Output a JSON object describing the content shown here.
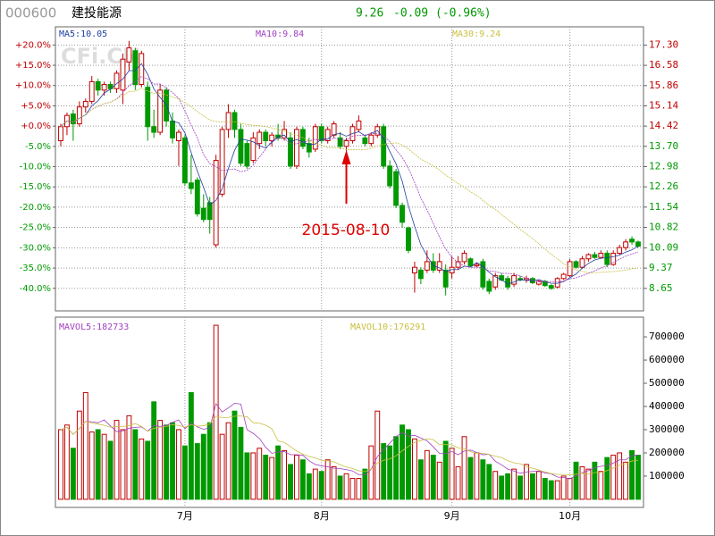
{
  "header": {
    "code": "000600",
    "name": "建投能源",
    "price": "9.26",
    "change": "-0.09",
    "change_pct": "(-0.96%)"
  },
  "chart_data": [
    {
      "type": "candlestick",
      "watermark": "CFi.CN",
      "ma_labels": [
        {
          "text": "MA5:10.05",
          "color": "#1f3fa0",
          "period": 5
        },
        {
          "text": "MA10:9.84",
          "color": "#a040c0",
          "period": 10
        },
        {
          "text": "MA30:9.24",
          "color": "#c8c040",
          "period": 30
        }
      ],
      "annotation": {
        "text": "2015-08-10",
        "index": 46,
        "color": "#e00000"
      },
      "up_color": "#c00000",
      "down_color": "#009900",
      "grid": true,
      "categories": [
        null,
        null,
        null,
        null,
        null,
        null,
        null,
        null,
        null,
        null,
        null,
        null,
        null,
        null,
        null,
        null,
        null,
        null,
        null,
        null,
        "7月",
        null,
        null,
        null,
        null,
        null,
        null,
        null,
        null,
        null,
        null,
        null,
        null,
        null,
        null,
        null,
        null,
        null,
        null,
        null,
        null,
        null,
        "8月",
        null,
        null,
        null,
        null,
        null,
        null,
        null,
        null,
        null,
        null,
        null,
        null,
        null,
        null,
        null,
        null,
        null,
        null,
        null,
        null,
        "9月",
        null,
        null,
        null,
        null,
        null,
        null,
        null,
        null,
        null,
        null,
        null,
        null,
        null,
        null,
        null,
        null,
        null,
        null,
        "10月",
        null,
        null,
        null,
        null,
        null,
        null,
        null,
        null,
        null,
        null,
        null
      ],
      "candles": [
        [
          13.9,
          14.5,
          13.7,
          14.4
        ],
        [
          14.4,
          14.9,
          14.1,
          14.8
        ],
        [
          14.85,
          15.0,
          13.9,
          14.5
        ],
        [
          14.5,
          15.3,
          14.4,
          15.1
        ],
        [
          15.1,
          15.4,
          14.9,
          15.3
        ],
        [
          15.3,
          16.2,
          15.2,
          16.0
        ],
        [
          16.0,
          16.1,
          15.5,
          15.7
        ],
        [
          15.7,
          16.0,
          15.5,
          15.9
        ],
        [
          15.9,
          16.0,
          15.6,
          15.75
        ],
        [
          15.75,
          16.4,
          15.6,
          16.3
        ],
        [
          15.7,
          17.0,
          15.2,
          16.8
        ],
        [
          16.7,
          17.45,
          16.4,
          17.2
        ],
        [
          17.1,
          17.2,
          15.7,
          15.9
        ],
        [
          15.9,
          17.1,
          15.8,
          17.0
        ],
        [
          15.8,
          16.0,
          13.9,
          14.4
        ],
        [
          14.4,
          15.0,
          14.0,
          14.2
        ],
        [
          14.2,
          15.9,
          14.1,
          15.7
        ],
        [
          15.7,
          15.8,
          14.4,
          14.6
        ],
        [
          14.6,
          14.9,
          13.8,
          14.0
        ],
        [
          13.9,
          14.3,
          13.0,
          14.2
        ],
        [
          14.0,
          14.1,
          12.3,
          12.4
        ],
        [
          12.4,
          13.4,
          12.0,
          12.2
        ],
        [
          12.5,
          12.6,
          11.2,
          11.3
        ],
        [
          11.5,
          12.0,
          11.0,
          11.1
        ],
        [
          11.7,
          11.9,
          10.6,
          11.1
        ],
        [
          10.2,
          13.4,
          10.1,
          13.2
        ],
        [
          12.0,
          14.4,
          11.9,
          14.3
        ],
        [
          14.3,
          15.2,
          14.0,
          14.9
        ],
        [
          14.9,
          15.0,
          14.0,
          14.3
        ],
        [
          14.3,
          14.5,
          13.0,
          13.1
        ],
        [
          13.8,
          13.9,
          12.9,
          13.0
        ],
        [
          13.2,
          14.2,
          13.1,
          14.0
        ],
        [
          13.8,
          14.3,
          13.6,
          14.2
        ],
        [
          14.2,
          14.3,
          13.7,
          13.9
        ],
        [
          13.9,
          14.2,
          13.7,
          14.1
        ],
        [
          14.1,
          14.5,
          13.9,
          14.0
        ],
        [
          14.0,
          14.6,
          13.9,
          14.3
        ],
        [
          14.0,
          14.2,
          12.9,
          13.0
        ],
        [
          13.0,
          14.4,
          12.9,
          14.3
        ],
        [
          14.3,
          14.4,
          13.6,
          13.7
        ],
        [
          13.8,
          14.0,
          13.3,
          13.5
        ],
        [
          13.6,
          14.5,
          13.5,
          14.4
        ],
        [
          14.4,
          14.5,
          13.8,
          13.9
        ],
        [
          13.9,
          14.4,
          13.8,
          14.3
        ],
        [
          14.1,
          14.6,
          14.0,
          14.5
        ],
        [
          14.0,
          14.2,
          13.6,
          13.7
        ],
        [
          13.7,
          14.0,
          13.5,
          13.9
        ],
        [
          13.9,
          14.5,
          13.8,
          14.4
        ],
        [
          14.3,
          14.8,
          14.2,
          14.6
        ],
        [
          14.0,
          14.1,
          13.7,
          13.8
        ],
        [
          13.8,
          14.2,
          13.7,
          14.1
        ],
        [
          14.1,
          14.5,
          14.0,
          14.4
        ],
        [
          14.4,
          14.5,
          12.9,
          13.0
        ],
        [
          13.0,
          13.2,
          12.2,
          12.3
        ],
        [
          12.8,
          12.9,
          11.5,
          11.6
        ],
        [
          11.6,
          11.7,
          10.8,
          11.0
        ],
        [
          10.8,
          10.85,
          9.9,
          10.0
        ],
        [
          9.2,
          9.6,
          8.5,
          9.4
        ],
        [
          9.3,
          9.4,
          8.8,
          9.0
        ],
        [
          9.3,
          10.0,
          9.2,
          9.6
        ],
        [
          9.6,
          9.9,
          9.2,
          9.3
        ],
        [
          9.3,
          9.9,
          9.2,
          9.6
        ],
        [
          9.3,
          9.5,
          8.4,
          8.7
        ],
        [
          9.2,
          9.8,
          9.0,
          9.4
        ],
        [
          9.4,
          9.8,
          9.3,
          9.6
        ],
        [
          9.6,
          10.0,
          9.5,
          9.9
        ],
        [
          9.7,
          9.75,
          9.4,
          9.45
        ],
        [
          9.45,
          9.55,
          9.4,
          9.5
        ],
        [
          9.6,
          9.7,
          8.6,
          8.7
        ],
        [
          8.9,
          9.0,
          8.45,
          8.55
        ],
        [
          8.7,
          9.2,
          8.6,
          9.1
        ],
        [
          9.1,
          9.2,
          8.9,
          8.95
        ],
        [
          9.0,
          9.1,
          8.6,
          8.7
        ],
        [
          8.8,
          9.2,
          8.7,
          9.1
        ],
        [
          9.0,
          9.1,
          8.9,
          8.95
        ],
        [
          8.95,
          9.1,
          8.85,
          9.0
        ],
        [
          9.0,
          9.05,
          8.8,
          8.85
        ],
        [
          8.8,
          8.95,
          8.75,
          8.9
        ],
        [
          8.9,
          8.95,
          8.7,
          8.75
        ],
        [
          8.75,
          8.8,
          8.6,
          8.65
        ],
        [
          8.7,
          9.05,
          8.65,
          9.0
        ],
        [
          9.0,
          9.2,
          8.95,
          9.15
        ],
        [
          9.1,
          9.7,
          9.05,
          9.6
        ],
        [
          9.6,
          9.65,
          9.35,
          9.4
        ],
        [
          9.4,
          9.8,
          9.35,
          9.7
        ],
        [
          9.7,
          9.9,
          9.6,
          9.85
        ],
        [
          9.85,
          9.95,
          9.7,
          9.75
        ],
        [
          9.75,
          10.0,
          9.7,
          9.9
        ],
        [
          9.9,
          10.0,
          9.4,
          9.5
        ],
        [
          9.5,
          10.0,
          9.45,
          9.9
        ],
        [
          9.9,
          10.2,
          9.85,
          10.1
        ],
        [
          10.1,
          10.4,
          10.0,
          10.3
        ],
        [
          10.4,
          10.5,
          10.2,
          10.3
        ],
        [
          10.3,
          10.35,
          10.1,
          10.15
        ]
      ],
      "ylim": [
        7.85,
        17.95
      ],
      "yticks": [
        {
          "value": 17.3,
          "label": "17.30"
        },
        16.58,
        15.86,
        15.14,
        14.42,
        {
          "value": 13.7,
          "label": "13.70"
        },
        12.98,
        12.26,
        11.54,
        10.82,
        10.09,
        9.37,
        8.65
      ],
      "y2lim": [
        -45.56,
        24.48
      ],
      "y2ticks": [
        {
          "value": 20,
          "label": "+20.0%"
        },
        {
          "value": 15,
          "label": "+15.0%"
        },
        {
          "value": 10,
          "label": "+10.0%"
        },
        {
          "value": 5,
          "label": "+5.0%"
        },
        {
          "value": 0,
          "label": "+0.0%"
        },
        {
          "value": -5,
          "label": "-5.0%"
        },
        {
          "value": -10,
          "label": "-10.0%"
        },
        {
          "value": -15,
          "label": "-15.0%"
        },
        {
          "value": -20,
          "label": "-20.0%"
        },
        {
          "value": -25,
          "label": "-25.0%"
        },
        {
          "value": -30,
          "label": "-30.0%"
        },
        {
          "value": -35,
          "label": "-35.0%"
        },
        {
          "value": -40,
          "label": "-40.0%"
        }
      ]
    },
    {
      "type": "bar",
      "ma_labels": [
        {
          "text": "MAVOL5:182733",
          "color": "#a040c0",
          "period": 5
        },
        {
          "text": "MAVOL10:176291",
          "color": "#c8c040",
          "period": 10
        }
      ],
      "values": [
        300000,
        320000,
        220000,
        380000,
        460000,
        290000,
        300000,
        280000,
        250000,
        340000,
        300000,
        360000,
        300000,
        260000,
        250000,
        420000,
        340000,
        320000,
        330000,
        300000,
        230000,
        460000,
        240000,
        280000,
        330000,
        750000,
        280000,
        330000,
        380000,
        310000,
        200000,
        200000,
        220000,
        190000,
        180000,
        230000,
        210000,
        150000,
        190000,
        170000,
        110000,
        130000,
        120000,
        170000,
        140000,
        100000,
        110000,
        90000,
        90000,
        130000,
        230000,
        380000,
        240000,
        230000,
        270000,
        320000,
        300000,
        260000,
        170000,
        210000,
        190000,
        160000,
        250000,
        220000,
        140000,
        270000,
        180000,
        200000,
        170000,
        150000,
        120000,
        100000,
        110000,
        130000,
        100000,
        150000,
        110000,
        120000,
        90000,
        80000,
        80000,
        100000,
        90000,
        160000,
        140000,
        130000,
        160000,
        120000,
        180000,
        190000,
        200000,
        160000,
        210000,
        190000
      ],
      "ylim": [
        -35000,
        785000
      ],
      "yticks": [
        100000,
        200000,
        300000,
        400000,
        500000,
        600000,
        700000
      ]
    }
  ]
}
